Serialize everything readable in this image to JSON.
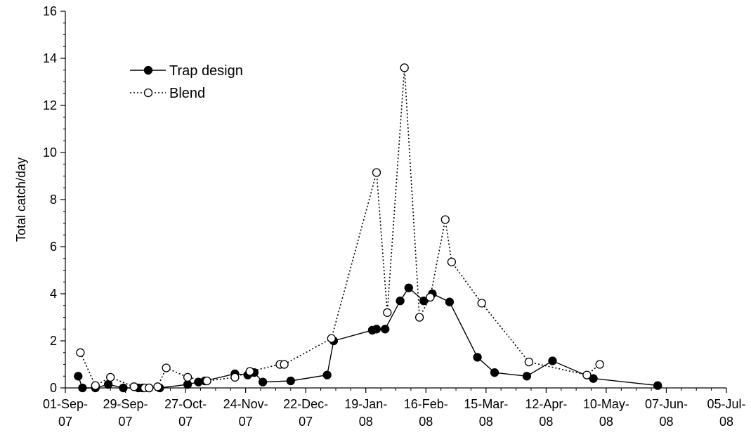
{
  "chart_data": {
    "type": "line",
    "title": "",
    "xlabel": "",
    "ylabel": "Total catch/day",
    "ylim": [
      0,
      16
    ],
    "y_ticks": [
      0,
      2,
      4,
      6,
      8,
      10,
      12,
      14,
      16
    ],
    "xlim": [
      "2007-09-01",
      "2008-07-05"
    ],
    "x_ticks": [
      {
        "date": "2007-09-01",
        "line1": "01-Sep-",
        "line2": "07"
      },
      {
        "date": "2007-09-29",
        "line1": "29-Sep-",
        "line2": "07"
      },
      {
        "date": "2007-10-27",
        "line1": "27-Oct-",
        "line2": "07"
      },
      {
        "date": "2007-11-24",
        "line1": "24-Nov-",
        "line2": "07"
      },
      {
        "date": "2007-12-22",
        "line1": "22-Dec-",
        "line2": "07"
      },
      {
        "date": "2008-01-19",
        "line1": "19-Jan-",
        "line2": "08"
      },
      {
        "date": "2008-02-16",
        "line1": "16-Feb-",
        "line2": "08"
      },
      {
        "date": "2008-03-15",
        "line1": "15-Mar-",
        "line2": "08"
      },
      {
        "date": "2008-04-12",
        "line1": "12-Apr-",
        "line2": "08"
      },
      {
        "date": "2008-05-10",
        "line1": "10-May-",
        "line2": "08"
      },
      {
        "date": "2008-06-07",
        "line1": "07-Jun-",
        "line2": "08"
      },
      {
        "date": "2008-07-05",
        "line1": "05-Jul-",
        "line2": "08"
      }
    ],
    "legend_position": "top-left",
    "grid": false,
    "series": [
      {
        "name": "Trap design",
        "line": "solid",
        "marker": "filled-circle",
        "color": "#000000",
        "points": [
          [
            "2007-09-07",
            0.5
          ],
          [
            "2007-09-09",
            0.0
          ],
          [
            "2007-09-15",
            0.0
          ],
          [
            "2007-09-21",
            0.15
          ],
          [
            "2007-09-28",
            0.0
          ],
          [
            "2007-10-05",
            0.0
          ],
          [
            "2007-10-07",
            0.0
          ],
          [
            "2007-10-10",
            0.0
          ],
          [
            "2007-10-15",
            0.0
          ],
          [
            "2007-10-28",
            0.15
          ],
          [
            "2007-11-02",
            0.25
          ],
          [
            "2007-11-05",
            0.3
          ],
          [
            "2007-11-19",
            0.6
          ],
          [
            "2007-11-25",
            0.55
          ],
          [
            "2007-11-28",
            0.65
          ],
          [
            "2007-12-02",
            0.25
          ],
          [
            "2007-12-15",
            0.3
          ],
          [
            "2008-01-01",
            0.55
          ],
          [
            "2008-01-04",
            2.0
          ],
          [
            "2008-01-22",
            2.45
          ],
          [
            "2008-01-24",
            2.5
          ],
          [
            "2008-01-28",
            2.5
          ],
          [
            "2008-02-04",
            3.7
          ],
          [
            "2008-02-08",
            4.25
          ],
          [
            "2008-02-15",
            3.7
          ],
          [
            "2008-02-19",
            4.0
          ],
          [
            "2008-02-27",
            3.65
          ],
          [
            "2008-03-11",
            1.3
          ],
          [
            "2008-03-19",
            0.65
          ],
          [
            "2008-04-03",
            0.5
          ],
          [
            "2008-04-15",
            1.15
          ],
          [
            "2008-05-04",
            0.4
          ],
          [
            "2008-06-03",
            0.1
          ]
        ]
      },
      {
        "name": "Blend",
        "line": "dotted",
        "marker": "open-circle",
        "color": "#000000",
        "points": [
          [
            "2007-09-08",
            1.5
          ],
          [
            "2007-09-15",
            0.1
          ],
          [
            "2007-09-22",
            0.45
          ],
          [
            "2007-10-03",
            0.05
          ],
          [
            "2007-10-08",
            0.0
          ],
          [
            "2007-10-10",
            0.0
          ],
          [
            "2007-10-14",
            0.05
          ],
          [
            "2007-10-18",
            0.85
          ],
          [
            "2007-10-28",
            0.45
          ],
          [
            "2007-11-06",
            0.3
          ],
          [
            "2007-11-19",
            0.45
          ],
          [
            "2007-11-26",
            0.7
          ],
          [
            "2007-12-10",
            1.0
          ],
          [
            "2007-12-12",
            1.0
          ],
          [
            "2008-01-03",
            2.1
          ],
          [
            "2008-01-24",
            9.15
          ],
          [
            "2008-01-29",
            3.2
          ],
          [
            "2008-02-06",
            13.6
          ],
          [
            "2008-02-13",
            3.0
          ],
          [
            "2008-02-18",
            3.85
          ],
          [
            "2008-02-25",
            7.15
          ],
          [
            "2008-02-28",
            5.35
          ],
          [
            "2008-03-13",
            3.6
          ],
          [
            "2008-04-04",
            1.1
          ],
          [
            "2008-05-01",
            0.55
          ],
          [
            "2008-05-07",
            1.0
          ]
        ]
      }
    ]
  }
}
